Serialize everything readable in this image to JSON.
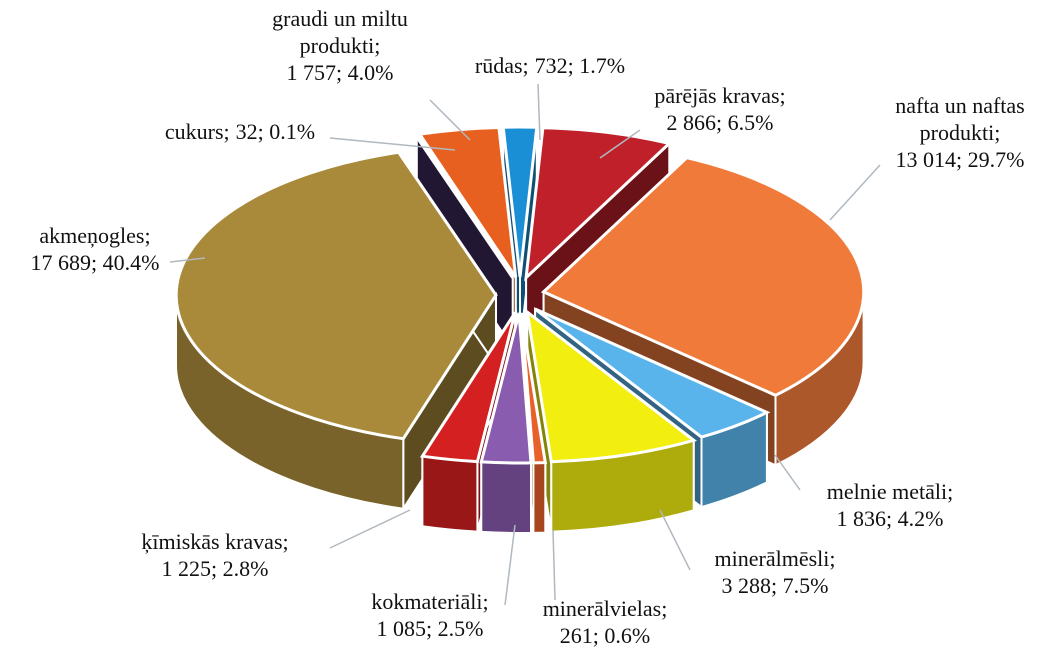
{
  "chart_data": {
    "type": "pie",
    "categories": [
      "rūdas;",
      "pārējās kravas;",
      "nafta un naftas produkti;",
      "melnie metāli;",
      "minerālmēsli;",
      "minerālvielas;",
      "kokmateriāli;",
      "ķīmiskās kravas;",
      "akmeņogles;",
      "cukurs;",
      "graudi un miltu produkti;"
    ],
    "values": [
      732,
      2866,
      13014,
      1836,
      3288,
      261,
      1085,
      1225,
      17689,
      32,
      1757
    ],
    "value_labels": [
      "732; 1.7%",
      "2 866; 6.5%",
      "13 014; 29.7%",
      "1 836; 4.2%",
      "3 288; 7.5%",
      "261; 0.6%",
      "1 085; 2.5%",
      "1 225; 2.8%",
      "17 689; 40.4%",
      "32; 0.1%",
      "1 757; 4.0%"
    ],
    "colors": [
      "#1a8fd6",
      "#c0202a",
      "#f07a3a",
      "#5ab4ec",
      "#f2ee10",
      "#e8602a",
      "#8a5cb0",
      "#d42020",
      "#a88a3a",
      "#3c2a5a",
      "#e86020"
    ]
  }
}
